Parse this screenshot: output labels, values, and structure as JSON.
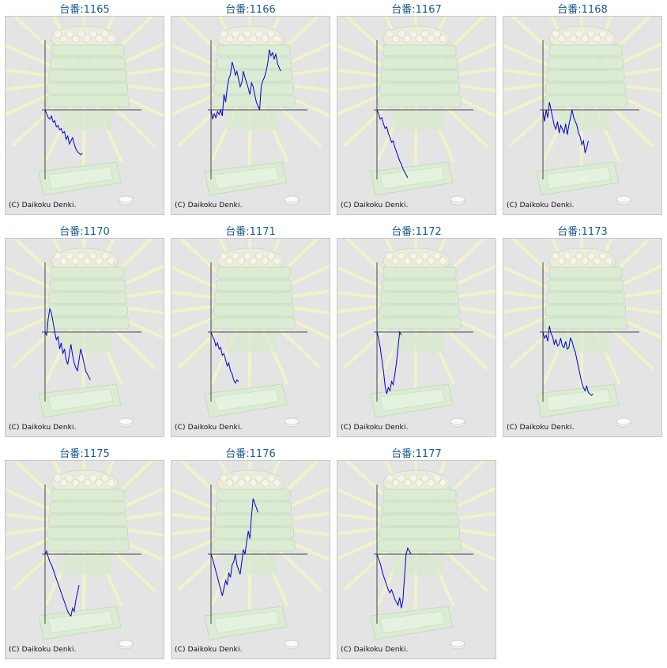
{
  "copyright": "(C) Daikoku Denki.",
  "colors": {
    "line": "#0000cc",
    "axis": "#444444",
    "title": "#1a5a8a",
    "panel_bg": "#e4e4e4"
  },
  "chart_data": [
    {
      "type": "line",
      "title": "台番:1165",
      "y": [
        0,
        -5,
        -10,
        -12,
        -8,
        -16,
        -14,
        -22,
        -20,
        -26,
        -24,
        -30,
        -28,
        -38,
        -34,
        -44,
        -40,
        -36,
        -44,
        -50,
        -54,
        -56,
        -58,
        -56
      ]
    },
    {
      "type": "line",
      "title": "台番:1166",
      "y": [
        0,
        -12,
        -5,
        -10,
        -2,
        -6,
        0,
        -8,
        20,
        10,
        28,
        40,
        46,
        62,
        55,
        45,
        50,
        40,
        30,
        35,
        50,
        42,
        35,
        28,
        20,
        35,
        30,
        20,
        10,
        5,
        0,
        30,
        38,
        42,
        50,
        60,
        78,
        70,
        74,
        66,
        72,
        60,
        55,
        50
      ]
    },
    {
      "type": "line",
      "title": "台番:1167",
      "y": [
        0,
        -5,
        -12,
        -10,
        -18,
        -24,
        -22,
        -30,
        -36,
        -42,
        -40,
        -48,
        -54,
        -60,
        -66,
        -70,
        -76,
        -80,
        -84,
        -88
      ]
    },
    {
      "type": "line",
      "title": "台番:1168",
      "y": [
        0,
        -15,
        0,
        -10,
        10,
        0,
        -10,
        -20,
        -25,
        -15,
        -30,
        -20,
        -25,
        -30,
        -18,
        -32,
        -20,
        -10,
        0,
        -10,
        -15,
        -20,
        -30,
        -35,
        -45,
        -40,
        -55,
        -50,
        -40
      ]
    },
    {
      "type": "line",
      "title": "台番:1170",
      "y": [
        0,
        -4,
        18,
        30,
        24,
        12,
        0,
        -10,
        -6,
        -22,
        -14,
        -28,
        -22,
        -36,
        -42,
        -28,
        -16,
        -30,
        -40,
        -46,
        -50,
        -36,
        -22,
        -30,
        -40,
        -50,
        -54,
        -58,
        -62
      ]
    },
    {
      "type": "line",
      "title": "台番:1171",
      "y": [
        0,
        -6,
        -10,
        -18,
        -14,
        -22,
        -20,
        -30,
        -28,
        -36,
        -44,
        -40,
        -50,
        -54,
        -62,
        -66,
        -62,
        -64
      ]
    },
    {
      "type": "line",
      "title": "台番:1172",
      "y": [
        0,
        -8,
        -20,
        -35,
        -50,
        -70,
        -80,
        -72,
        -76,
        -64,
        -68,
        -56,
        -40,
        -20,
        0,
        -4
      ]
    },
    {
      "type": "line",
      "title": "台番:1173",
      "y": [
        0,
        -8,
        -4,
        -12,
        8,
        -2,
        -6,
        -16,
        -10,
        -18,
        -16,
        -8,
        -18,
        -20,
        -12,
        -22,
        -20,
        -8,
        -12,
        -20,
        -26,
        -36,
        -46,
        -56,
        -66,
        -72,
        -76,
        -70,
        -78,
        -80,
        -82,
        -80
      ]
    },
    {
      "type": "line",
      "title": "台番:1175",
      "y": [
        0,
        4,
        -4,
        -10,
        -14,
        -20,
        -26,
        -32,
        -38,
        -44,
        -50,
        -56,
        -62,
        -68,
        -74,
        -78,
        -80,
        -70,
        -74,
        -60,
        -50,
        -40
      ]
    },
    {
      "type": "line",
      "title": "台番:1176",
      "y": [
        0,
        -6,
        -14,
        -22,
        -30,
        -38,
        -46,
        -54,
        -44,
        -34,
        -40,
        -24,
        -30,
        -14,
        -10,
        0,
        -14,
        -20,
        -26,
        -10,
        6,
        0,
        16,
        30,
        20,
        50,
        72,
        66,
        60,
        54
      ]
    },
    {
      "type": "line",
      "title": "台番:1177",
      "y": [
        0,
        -6,
        -12,
        -20,
        -28,
        -34,
        -40,
        -46,
        -50,
        -46,
        -52,
        -58,
        -62,
        -66,
        -56,
        -70,
        -60,
        -30,
        0,
        8,
        4,
        0
      ]
    }
  ]
}
